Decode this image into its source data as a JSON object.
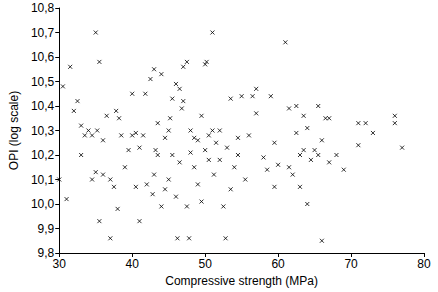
{
  "chart_data": {
    "type": "scatter",
    "x_label": "Compressive strength (MPa)",
    "y_label": "OPI (log scale)",
    "color": "#000000",
    "marker": "x",
    "grid": false,
    "xlim": [
      30,
      80
    ],
    "xticks": [
      30,
      40,
      50,
      60,
      70,
      80
    ],
    "ylim": [
      9.8,
      10.8
    ],
    "yticks": [
      {
        "value": 9.8,
        "label": "9,8"
      },
      {
        "value": 9.9,
        "label": "9,9"
      },
      {
        "value": 10.0,
        "label": "10,0"
      },
      {
        "value": 10.1,
        "label": "10,1"
      },
      {
        "value": 10.2,
        "label": "10,2"
      },
      {
        "value": 10.3,
        "label": "10,3"
      },
      {
        "value": 10.4,
        "label": "10,4"
      },
      {
        "value": 10.5,
        "label": "10,5"
      },
      {
        "value": 10.6,
        "label": "10,6"
      },
      {
        "value": 10.7,
        "label": "10,7"
      },
      {
        "value": 10.8,
        "label": "10,8"
      }
    ],
    "x": [
      30,
      30.5,
      31,
      31.5,
      32,
      32.5,
      33,
      33,
      33.5,
      34,
      34.5,
      34.5,
      35,
      35,
      35.2,
      35.5,
      35.5,
      36,
      36,
      36.5,
      37,
      37,
      37.5,
      37.8,
      38,
      38.2,
      38.5,
      39,
      39.5,
      40,
      40,
      40.5,
      40.5,
      41,
      41,
      41.5,
      41.8,
      42,
      42.5,
      42.8,
      43,
      43,
      43.2,
      43.5,
      43.5,
      44,
      44,
      44.5,
      44.5,
      45,
      45,
      45.2,
      45.5,
      45.5,
      46,
      46,
      46.2,
      46.5,
      46.5,
      46.8,
      47,
      47,
      47.5,
      47.5,
      47.8,
      48,
      48,
      48.5,
      48.5,
      49,
      49,
      49.5,
      49.5,
      50,
      50,
      50.2,
      50.5,
      50.5,
      51,
      51,
      51.2,
      51.5,
      52,
      52,
      52.5,
      52.8,
      53,
      53.5,
      53.5,
      54,
      54.5,
      54.5,
      55,
      55.5,
      56,
      56.5,
      57,
      57,
      58,
      58.5,
      59,
      59.5,
      59.5,
      60,
      61,
      61.5,
      61.5,
      62,
      62.5,
      62.5,
      63,
      63,
      63.5,
      63.5,
      64,
      64,
      64.5,
      65,
      65.5,
      65.5,
      66,
      66,
      66.5,
      67,
      67,
      68,
      69,
      71,
      71,
      72,
      73,
      76,
      76,
      77
    ],
    "values": [
      10.1,
      10.48,
      10.02,
      10.56,
      10.38,
      10.42,
      10.32,
      10.2,
      10.28,
      10.3,
      10.28,
      10.1,
      10.7,
      10.13,
      10.3,
      10.58,
      9.93,
      10.26,
      10.12,
      10.36,
      10.1,
      9.86,
      10.07,
      10.38,
      9.98,
      10.35,
      10.28,
      10.15,
      10.22,
      10.28,
      10.45,
      10.29,
      10.07,
      10.23,
      9.93,
      10.28,
      10.45,
      10.08,
      10.51,
      10.04,
      10.55,
      10.12,
      10.22,
      10.33,
      10.2,
      9.99,
      10.53,
      10.27,
      10.06,
      10.3,
      10.1,
      10.35,
      10.2,
      10.43,
      10.49,
      10.03,
      9.86,
      10.47,
      10.17,
      10.39,
      10.42,
      10.56,
      9.99,
      10.58,
      9.86,
      10.3,
      10.21,
      10.27,
      10.15,
      10.26,
      10.08,
      10.36,
      10.01,
      10.57,
      10.22,
      10.58,
      10.28,
      10.18,
      10.3,
      10.7,
      10.12,
      10.25,
      10.18,
      10.3,
      9.99,
      9.86,
      10.23,
      10.43,
      10.06,
      10.15,
      10.27,
      10.2,
      10.44,
      10.1,
      10.28,
      10.44,
      10.37,
      10.47,
      10.19,
      10.14,
      10.44,
      10.25,
      10.07,
      10.16,
      10.66,
      10.39,
      10.15,
      10.12,
      10.29,
      10.4,
      10.2,
      10.07,
      10.22,
      10.36,
      10.31,
      10.0,
      10.18,
      10.22,
      10.4,
      10.2,
      10.26,
      9.85,
      10.35,
      10.35,
      10.17,
      10.2,
      10.14,
      10.33,
      10.24,
      10.33,
      10.29,
      10.36,
      10.33,
      10.23
    ]
  }
}
